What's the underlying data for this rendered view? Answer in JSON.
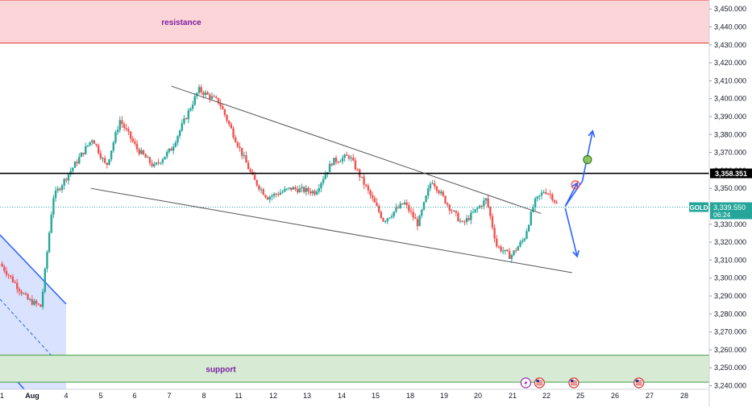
{
  "chart_data": {
    "type": "candlestick",
    "symbol": "GOLD",
    "last_price": "3,339.550",
    "countdown": "06:24",
    "horizontal_level": "3,358.351",
    "ylim": [
      3238,
      3455
    ],
    "y_ticks": [
      "3,450.000",
      "3,440.000",
      "3,430.000",
      "3,420.000",
      "3,410.000",
      "3,400.000",
      "3,390.000",
      "3,380.000",
      "3,370.000",
      "3,360.000",
      "3,350.000",
      "3,340.000",
      "3,330.000",
      "3,320.000",
      "3,310.000",
      "3,300.000",
      "3,290.000",
      "3,280.000",
      "3,270.000",
      "3,260.000",
      "3,250.000",
      "3,240.000"
    ],
    "x_ticks": [
      "1",
      "Aug",
      "4",
      "5",
      "6",
      "7",
      "8",
      "11",
      "12",
      "13",
      "14",
      "15",
      "18",
      "19",
      "20",
      "21",
      "22",
      "25",
      "26",
      "27",
      "28"
    ],
    "zones": {
      "resistance": {
        "label": "resistance",
        "from": 3431,
        "to": 3455
      },
      "support": {
        "label": "support",
        "from": 3242,
        "to": 3257
      }
    },
    "anchors": [
      {
        "day": 0,
        "price": 3308
      },
      {
        "day": 0.8,
        "price": 3288
      },
      {
        "day": 1.2,
        "price": 3284
      },
      {
        "day": 1.55,
        "price": 3345
      },
      {
        "day": 2.0,
        "price": 3358
      },
      {
        "day": 2.7,
        "price": 3378
      },
      {
        "day": 3.1,
        "price": 3362
      },
      {
        "day": 3.5,
        "price": 3388
      },
      {
        "day": 4.0,
        "price": 3372
      },
      {
        "day": 4.5,
        "price": 3362
      },
      {
        "day": 5.0,
        "price": 3372
      },
      {
        "day": 5.8,
        "price": 3405
      },
      {
        "day": 6.4,
        "price": 3398
      },
      {
        "day": 7.0,
        "price": 3372
      },
      {
        "day": 7.4,
        "price": 3355
      },
      {
        "day": 7.8,
        "price": 3345
      },
      {
        "day": 8.5,
        "price": 3350
      },
      {
        "day": 9.2,
        "price": 3348
      },
      {
        "day": 9.7,
        "price": 3365
      },
      {
        "day": 10.2,
        "price": 3368
      },
      {
        "day": 10.7,
        "price": 3350
      },
      {
        "day": 11.2,
        "price": 3332
      },
      {
        "day": 11.8,
        "price": 3342
      },
      {
        "day": 12.2,
        "price": 3330
      },
      {
        "day": 12.6,
        "price": 3355
      },
      {
        "day": 13.1,
        "price": 3340
      },
      {
        "day": 13.5,
        "price": 3330
      },
      {
        "day": 14.2,
        "price": 3344
      },
      {
        "day": 14.5,
        "price": 3318
      },
      {
        "day": 14.9,
        "price": 3312
      },
      {
        "day": 15.3,
        "price": 3322
      },
      {
        "day": 15.6,
        "price": 3342
      },
      {
        "day": 15.9,
        "price": 3349
      },
      {
        "day": 16.1,
        "price": 3346
      },
      {
        "day": 16.3,
        "price": 3339.55
      }
    ],
    "projection_arrows": [
      {
        "name": "bullish-arrow-right",
        "points": [
          [
            16.5,
            3340
          ],
          [
            17.0,
            3354
          ],
          [
            17.3,
            3382
          ]
        ]
      },
      {
        "name": "bullish-arrow-left",
        "points": [
          [
            16.5,
            3340
          ],
          [
            16.85,
            3353
          ]
        ]
      },
      {
        "name": "bearish-arrow",
        "points": [
          [
            16.5,
            3339
          ],
          [
            16.85,
            3312
          ]
        ]
      }
    ],
    "trendlines": [
      {
        "name": "wedge-upper-trendline",
        "from": [
          5.0,
          3407
        ],
        "to": [
          15.8,
          3336
        ]
      },
      {
        "name": "wedge-lower-trendline",
        "from": [
          2.65,
          3350
        ],
        "to": [
          16.7,
          3303
        ]
      }
    ],
    "markers": [
      {
        "name": "target-circle-green",
        "day": 17.15,
        "price": 3366,
        "color": "#8bc34a"
      },
      {
        "name": "target-circle-red",
        "day": 16.8,
        "price": 3352,
        "color": "#ef5350"
      }
    ],
    "events": [
      {
        "name": "lightning-event-icon",
        "day": 15.35
      },
      {
        "name": "us-flag-event-icon",
        "day": 15.75
      },
      {
        "name": "us-flag-event-icon",
        "day": 16.75
      },
      {
        "name": "us-flag-event-icon",
        "day": 18.65
      }
    ],
    "colors": {
      "bull": "#26a69a",
      "bear": "#ef5350",
      "resistance_fill": "#fcd5d8",
      "resistance_border": "#e53935",
      "support_fill": "#d7ead4",
      "support_border": "#43a047",
      "channel_fill": "#c9d6ff",
      "arrow": "#2962ff",
      "trendline": "#555555"
    }
  }
}
